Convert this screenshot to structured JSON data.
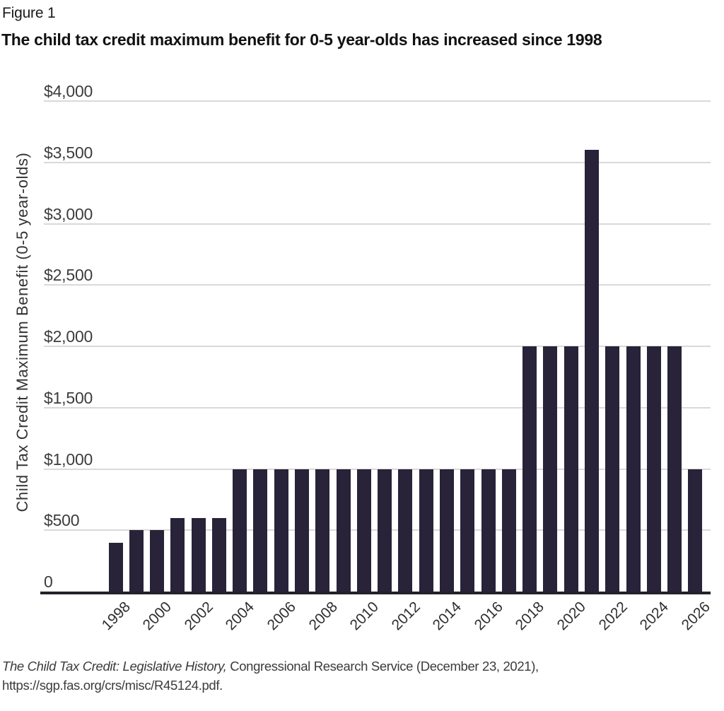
{
  "figure_label": "Figure 1",
  "chart_data": {
    "type": "bar",
    "title": "The child tax credit maximum benefit for 0-5 year-olds has increased since 1998",
    "ylabel": "Child Tax Credit Maximum Benefit (0-5 year-olds)",
    "xlabel": "",
    "x": [
      1998,
      1999,
      2000,
      2001,
      2002,
      2003,
      2004,
      2005,
      2006,
      2007,
      2008,
      2009,
      2010,
      2011,
      2012,
      2013,
      2014,
      2015,
      2016,
      2017,
      2018,
      2019,
      2020,
      2021,
      2022,
      2023,
      2024,
      2025,
      2026
    ],
    "values": [
      400,
      500,
      500,
      600,
      600,
      600,
      1000,
      1000,
      1000,
      1000,
      1000,
      1000,
      1000,
      1000,
      1000,
      1000,
      1000,
      1000,
      1000,
      1000,
      2000,
      2000,
      2000,
      3600,
      2000,
      2000,
      2000,
      2000,
      1000
    ],
    "ylim": [
      0,
      4000
    ],
    "ytick_values": [
      0,
      500,
      1000,
      1500,
      2000,
      2500,
      3000,
      3500,
      4000
    ],
    "ytick_labels": [
      "0",
      "$500",
      "$1,000",
      "$1,500",
      "$2,000",
      "$2,500",
      "$3,000",
      "$3,500",
      "$4,000"
    ],
    "xtick_labels": [
      "1998",
      "2000",
      "2002",
      "2004",
      "2006",
      "2008",
      "2010",
      "2012",
      "2014",
      "2016",
      "2018",
      "2020",
      "2022",
      "2024",
      "2026"
    ],
    "grid": true,
    "legend": "none",
    "bar_color": "#282339",
    "grid_color": "#d9d9d9",
    "axis_color": "#22222c"
  },
  "source": {
    "italic": "The Child Tax Credit: Legislative History,",
    "rest": " Congressional Research Service (December 23, 2021),",
    "url": "https://sgp.fas.org/crs/misc/R45124.pdf."
  }
}
